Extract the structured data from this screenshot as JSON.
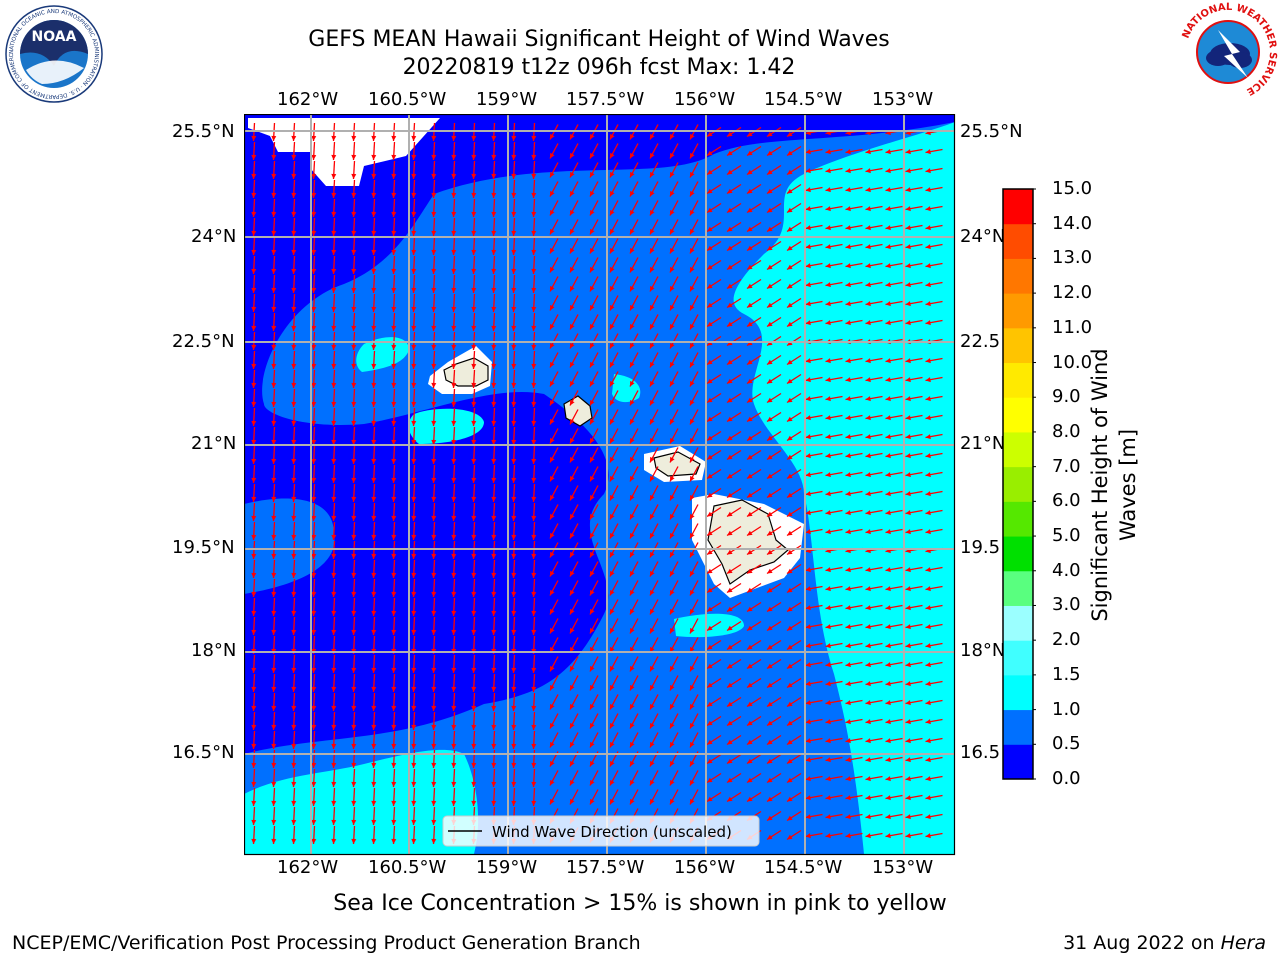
{
  "header": {
    "title_line1": "GEFS MEAN Hawaii Significant Height of Wind Waves",
    "title_line2": "20220819 t12z 096h fcst   Max: 1.42",
    "left_logo_text": "NOAA",
    "left_logo_ring_text": "NATIONAL OCEANIC AND ATMOSPHERIC ADMINISTRATION · U.S. DEPARTMENT OF COMMERCE",
    "right_logo_ring_text": "NATIONAL WEATHER SERVICE"
  },
  "map": {
    "lon_labels": [
      "162°W",
      "160.5°W",
      "159°W",
      "157.5°W",
      "156°W",
      "154.5°W",
      "153°W"
    ],
    "lat_labels": [
      "25.5°N",
      "24°N",
      "22.5°N",
      "21°N",
      "19.5°N",
      "18°N",
      "16.5°N"
    ],
    "lat_labels_right": [
      "25.5°N",
      "24°N",
      "22.5",
      "21°N",
      "19.5",
      "18°N",
      "16.5"
    ],
    "legend_label": "Wind Wave Direction (unscaled)",
    "arrow_color": "#ff0000",
    "land_color": "#eeeddc",
    "grid_color": "#b0b0b0"
  },
  "colorbar": {
    "label_line1": "Significant Height of Wind",
    "label_line2": "Waves [m]",
    "tick_labels": [
      "0.0",
      "0.5",
      "1.0",
      "1.5",
      "2.0",
      "3.0",
      "4.0",
      "5.0",
      "6.0",
      "7.0",
      "8.0",
      "9.0",
      "10.0",
      "11.0",
      "12.0",
      "13.0",
      "14.0",
      "15.0"
    ],
    "colors": [
      "#0000ff",
      "#0070ff",
      "#00ffff",
      "#40ffff",
      "#9bffff",
      "#59ff7f",
      "#00e000",
      "#55e800",
      "#99ee00",
      "#ccff00",
      "#ffff00",
      "#ffea00",
      "#ffc400",
      "#ff9a00",
      "#ff7700",
      "#ff4c00",
      "#ff0000"
    ]
  },
  "footer": {
    "note": "Sea Ice Concentration > 15% is shown in pink to yellow",
    "org": "NCEP/EMC/Verification Post Processing Product Generation Branch",
    "date": "31 Aug 2022 on ",
    "host": "Hera"
  }
}
